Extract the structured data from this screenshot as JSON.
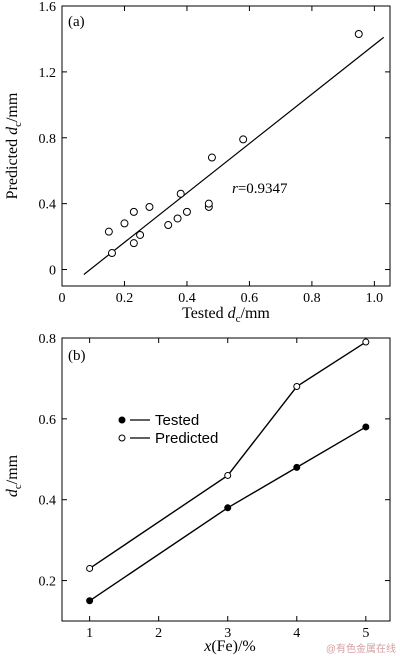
{
  "watermark": "@有色金属在线",
  "chart_data": [
    {
      "type": "scatter",
      "panel_label": "(a)",
      "xlabel_main": "Tested ",
      "xlabel_sym": "d",
      "xlabel_sub": "c",
      "xlabel_unit": "/mm",
      "ylabel_main": "Predicted ",
      "ylabel_sym": "d",
      "ylabel_sub": "c",
      "ylabel_unit": "/mm",
      "xlim": [
        0,
        1.05
      ],
      "ylim": [
        -0.1,
        1.6
      ],
      "xticks": [
        0,
        0.2,
        0.4,
        0.6,
        0.8,
        1.0
      ],
      "xtick_labels": [
        "0",
        "0.2",
        "0.4",
        "0.6",
        "0.8",
        "1.0"
      ],
      "yticks": [
        0,
        0.4,
        0.8,
        1.2,
        1.6
      ],
      "ytick_labels": [
        "0",
        "0.4",
        "0.8",
        "1.2",
        "1.6"
      ],
      "annotation_sym": "r",
      "annotation_val": "=0.9347",
      "points": [
        {
          "x": 0.15,
          "y": 0.23
        },
        {
          "x": 0.16,
          "y": 0.1
        },
        {
          "x": 0.2,
          "y": 0.28
        },
        {
          "x": 0.23,
          "y": 0.35
        },
        {
          "x": 0.23,
          "y": 0.16
        },
        {
          "x": 0.25,
          "y": 0.21
        },
        {
          "x": 0.28,
          "y": 0.38
        },
        {
          "x": 0.34,
          "y": 0.27
        },
        {
          "x": 0.37,
          "y": 0.31
        },
        {
          "x": 0.38,
          "y": 0.46
        },
        {
          "x": 0.4,
          "y": 0.35
        },
        {
          "x": 0.47,
          "y": 0.38
        },
        {
          "x": 0.47,
          "y": 0.4
        },
        {
          "x": 0.48,
          "y": 0.68
        },
        {
          "x": 0.58,
          "y": 0.79
        },
        {
          "x": 0.95,
          "y": 1.43
        }
      ],
      "fit_line": [
        {
          "x": 0.07,
          "y": -0.03
        },
        {
          "x": 1.03,
          "y": 1.41
        }
      ]
    },
    {
      "type": "line",
      "panel_label": "(b)",
      "xlabel_main": "x",
      "xlabel_rest": "(Fe)/%",
      "ylabel_sym": "d",
      "ylabel_sub": "c",
      "ylabel_unit": "/mm",
      "xlim": [
        0.6,
        5.35
      ],
      "ylim": [
        0.1,
        0.8
      ],
      "xticks": [
        1,
        2,
        3,
        4,
        5
      ],
      "xtick_labels": [
        "1",
        "2",
        "3",
        "4",
        "5"
      ],
      "yticks": [
        0.2,
        0.4,
        0.6,
        0.8
      ],
      "ytick_labels": [
        "0.2",
        "0.4",
        "0.6",
        "0.8"
      ],
      "legend_position": "upper-left",
      "series": [
        {
          "name": "Tested",
          "marker": "filled",
          "x": [
            1,
            3,
            4,
            5
          ],
          "values": [
            0.15,
            0.38,
            0.48,
            0.58
          ]
        },
        {
          "name": "Predicted",
          "marker": "open",
          "x": [
            1,
            3,
            4,
            5
          ],
          "values": [
            0.23,
            0.46,
            0.68,
            0.79
          ]
        }
      ]
    }
  ]
}
